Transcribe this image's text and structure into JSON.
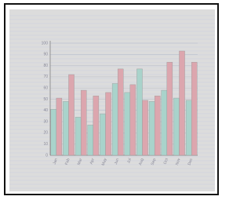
{
  "chart_data": {
    "type": "bar",
    "categories": [
      "Jan",
      "Feb",
      "Mar",
      "Apr",
      "May",
      "Jun",
      "Jul",
      "Aug",
      "Sep",
      "Oct",
      "Nov",
      "Dec"
    ],
    "series": [
      {
        "color": "#a9d3cb",
        "values": [
          41,
          48,
          34,
          27,
          37,
          64,
          56,
          77,
          48,
          58,
          51,
          49
        ]
      },
      {
        "color": "#dca6ae",
        "values": [
          51,
          72,
          58,
          53,
          56,
          77,
          63,
          49,
          53,
          83,
          93,
          83
        ]
      }
    ],
    "ylim": [
      0,
      100
    ],
    "yticks": [
      0,
      10,
      20,
      30,
      40,
      50,
      60,
      70,
      80,
      90,
      100
    ],
    "grid": true
  }
}
